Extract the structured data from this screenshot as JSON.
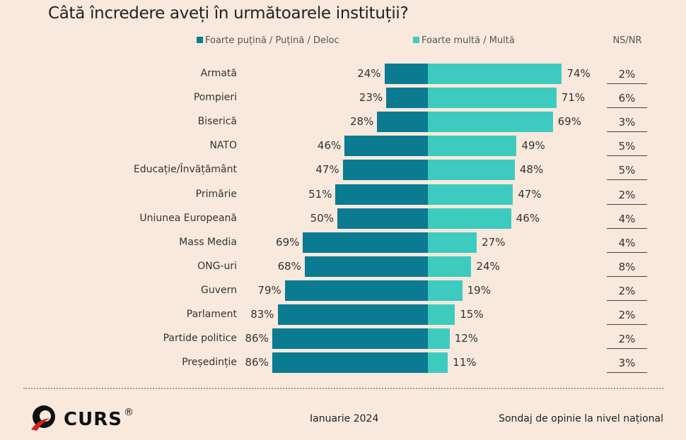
{
  "chart_data": {
    "type": "bar",
    "orientation": "horizontal-diverging",
    "title": "Câtă încredere aveți în următoarele instituții?",
    "categories": [
      "Armată",
      "Pompieri",
      "Biserică",
      "NATO",
      "Educație/Învățământ",
      "Primărie",
      "Uniunea Europeană",
      "Mass Media",
      "ONG-uri",
      "Guvern",
      "Parlament",
      "Partide politice",
      "Președinție"
    ],
    "series": [
      {
        "name": "Foarte puțină / Puțină / Deloc",
        "color": "#0b7b91",
        "values": [
          24,
          23,
          28,
          46,
          47,
          51,
          50,
          69,
          68,
          79,
          83,
          86,
          86
        ]
      },
      {
        "name": "Foarte multă / Multă",
        "color": "#3dcbbf",
        "values": [
          74,
          71,
          69,
          49,
          48,
          47,
          46,
          27,
          24,
          19,
          15,
          12,
          11
        ]
      }
    ],
    "extra_column": {
      "header": "NS/NR",
      "values": [
        2,
        6,
        3,
        5,
        5,
        2,
        4,
        4,
        8,
        2,
        2,
        2,
        3
      ]
    },
    "unit": "%",
    "legend_placement": "top",
    "grid": false
  },
  "footer": {
    "logo": "CURS®",
    "date": "Ianuarie 2024",
    "note": "Sondaj de opinie la nivel național"
  }
}
